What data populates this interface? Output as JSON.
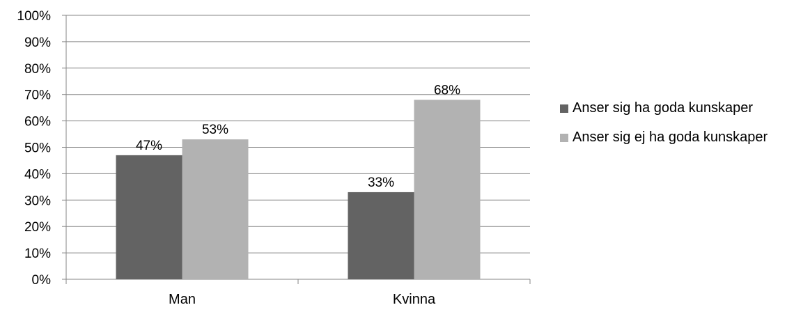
{
  "chart_data": {
    "type": "bar",
    "categories": [
      "Man",
      "Kvinna"
    ],
    "series": [
      {
        "name": "Anser sig ha goda kunskaper",
        "values": [
          47,
          33
        ],
        "labels": [
          "47%",
          "33%"
        ],
        "color": "#636363"
      },
      {
        "name": "Anser sig ej ha goda kunskaper",
        "values": [
          53,
          68
        ],
        "labels": [
          "53%",
          "68%"
        ],
        "color": "#b2b2b2"
      }
    ],
    "ylim": [
      0,
      100
    ],
    "yticks": [
      "0%",
      "10%",
      "20%",
      "30%",
      "40%",
      "50%",
      "60%",
      "70%",
      "80%",
      "90%",
      "100%"
    ],
    "grid": true,
    "gridColor": "#868686",
    "legend_position": "right"
  }
}
